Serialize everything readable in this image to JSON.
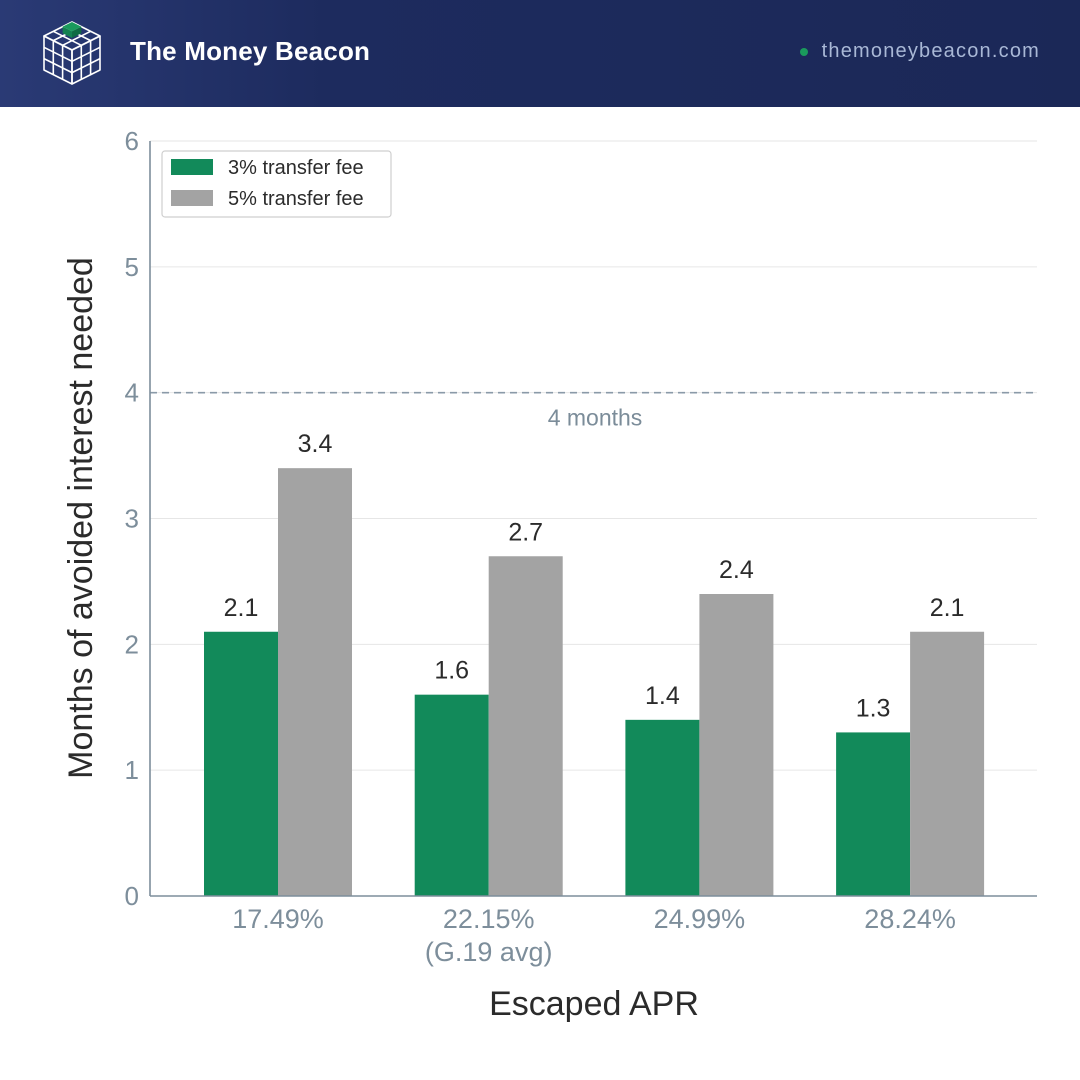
{
  "header": {
    "brand": "The Money Beacon",
    "site": "themoneybeacon.com",
    "logo_icon": "cube-grid-icon",
    "colors": {
      "background": "#1d2b5e",
      "accent": "#1a9a5c"
    }
  },
  "chart_data": {
    "type": "bar",
    "title": "",
    "xlabel": "Escaped APR",
    "ylabel": "Months of avoided interest needed",
    "ylim": [
      0,
      6
    ],
    "yticks": [
      0,
      1,
      2,
      3,
      4,
      5,
      6
    ],
    "categories": [
      [
        "17.49%"
      ],
      [
        "22.15%",
        "(G.19 avg)"
      ],
      [
        "24.99%"
      ],
      [
        "28.24%"
      ]
    ],
    "series": [
      {
        "name": "3% transfer fee",
        "color": "#128a5a",
        "values": [
          2.1,
          1.6,
          1.4,
          1.3
        ]
      },
      {
        "name": "5% transfer fee",
        "color": "#a3a3a3",
        "values": [
          3.4,
          2.7,
          2.4,
          2.1
        ]
      }
    ],
    "reference_line": {
      "value": 4,
      "label": "4 months",
      "style": "dashed"
    },
    "legend": "top-left",
    "grid": true
  }
}
